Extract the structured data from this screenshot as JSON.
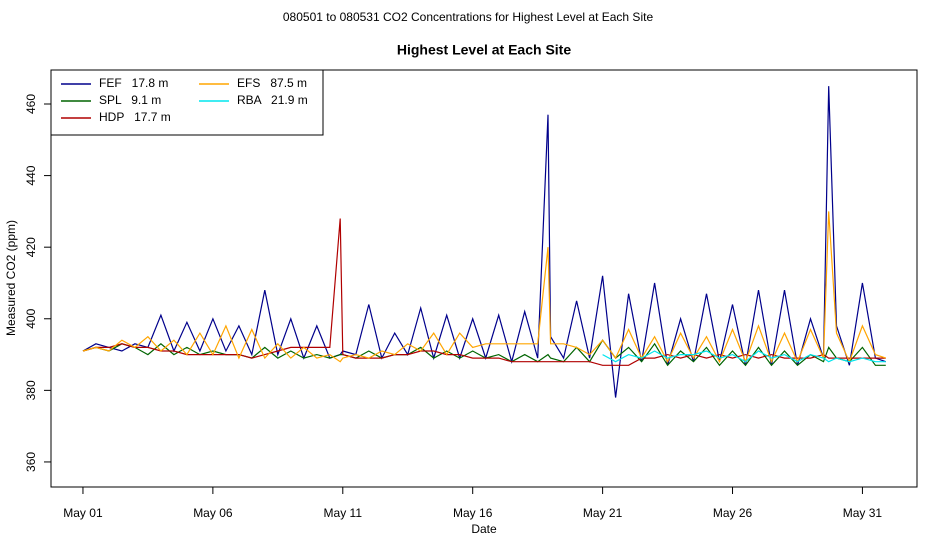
{
  "chart_data": {
    "type": "line",
    "suptitle": "080501  to  080531 CO2 Concentrations for Highest Level at Each Site",
    "title": "Highest Level at Each Site",
    "xlabel": "Date",
    "ylabel": "Measured CO2 (ppm)",
    "x": [
      0,
      0.5,
      1,
      1.5,
      2,
      2.5,
      3,
      3.5,
      4,
      4.5,
      5,
      5.5,
      6,
      6.5,
      7,
      7.5,
      8,
      8.5,
      9,
      9.5,
      9.9,
      10,
      10.5,
      11,
      11.5,
      12,
      12.5,
      13,
      13.5,
      14,
      14.5,
      15,
      15.5,
      16,
      16.5,
      17,
      17.5,
      17.9,
      18,
      18.5,
      19,
      19.5,
      20,
      20.5,
      21,
      21.5,
      22,
      22.5,
      23,
      23.5,
      24,
      24.5,
      25,
      25.5,
      26,
      26.5,
      27,
      27.5,
      28,
      28.5,
      28.7,
      29,
      29.5,
      30,
      30.5,
      30.9
    ],
    "xlim": [
      -1.23,
      32.1
    ],
    "xticks": [
      {
        "value": 0,
        "label": "May 01"
      },
      {
        "value": 5,
        "label": "May 06"
      },
      {
        "value": 10,
        "label": "May 11"
      },
      {
        "value": 15,
        "label": "May 16"
      },
      {
        "value": 20,
        "label": "May 21"
      },
      {
        "value": 25,
        "label": "May 26"
      },
      {
        "value": 30,
        "label": "May 31"
      }
    ],
    "ylim": [
      353,
      469.5
    ],
    "yticks": [
      360,
      380,
      400,
      420,
      440,
      460
    ],
    "legend": "top-left",
    "series": [
      {
        "name": "FEF   17.8 m",
        "color": "#00008b",
        "values": [
          391,
          393,
          392,
          391,
          393,
          392,
          401,
          391,
          399,
          391,
          400,
          391,
          398,
          390,
          408,
          390,
          400,
          389,
          398,
          389,
          390,
          391,
          390,
          404,
          389,
          396,
          390,
          403,
          389,
          401,
          389,
          400,
          389,
          401,
          388,
          402,
          389,
          457,
          395,
          389,
          405,
          389,
          412,
          378,
          407,
          388,
          410,
          387,
          400,
          388,
          407,
          388,
          404,
          387,
          408,
          387,
          408,
          387,
          400,
          389,
          465,
          398,
          387,
          410,
          389,
          388
        ]
      },
      {
        "name": "SPL   9.1 m",
        "color": "#006400",
        "values": [
          391,
          392,
          391,
          393,
          392,
          390,
          393,
          390,
          392,
          390,
          391,
          390,
          390,
          389,
          392,
          389,
          391,
          389,
          390,
          389,
          390,
          390,
          389,
          391,
          389,
          390,
          390,
          392,
          389,
          391,
          389,
          391,
          389,
          390,
          388,
          390,
          388,
          390,
          389,
          388,
          392,
          388,
          394,
          389,
          392,
          388,
          393,
          387,
          391,
          388,
          392,
          387,
          391,
          387,
          392,
          387,
          391,
          387,
          390,
          388,
          392,
          389,
          388,
          392,
          387,
          387
        ]
      },
      {
        "name": "HDP   17.7 m",
        "color": "#b00000",
        "values": [
          391,
          392,
          392,
          393,
          392,
          392,
          391,
          391,
          390,
          390,
          390,
          390,
          390,
          389,
          390,
          391,
          392,
          392,
          392,
          392,
          428,
          390,
          389,
          389,
          389,
          390,
          390,
          391,
          391,
          390,
          390,
          389,
          389,
          389,
          388,
          388,
          388,
          388,
          388,
          388,
          388,
          388,
          387,
          387,
          387,
          389,
          389,
          390,
          389,
          390,
          389,
          390,
          389,
          390,
          389,
          390,
          389,
          389,
          389,
          390,
          389,
          389,
          389,
          389,
          389,
          389
        ]
      },
      {
        "name": "EFS   87.5 m",
        "color": "#ffa500",
        "values": [
          391,
          392,
          391,
          394,
          392,
          395,
          391,
          394,
          390,
          396,
          390,
          398,
          389,
          397,
          389,
          393,
          389,
          392,
          389,
          390,
          388,
          389,
          390,
          389,
          391,
          390,
          393,
          391,
          396,
          390,
          396,
          392,
          393,
          393,
          393,
          393,
          393,
          420,
          393,
          393,
          392,
          390,
          394,
          389,
          397,
          389,
          395,
          388,
          396,
          389,
          395,
          388,
          397,
          388,
          398,
          388,
          396,
          388,
          397,
          389,
          430,
          396,
          388,
          398,
          390,
          389
        ]
      },
      {
        "name": "RBA   21.9 m",
        "color": "#00e5ee",
        "values": [
          null,
          null,
          null,
          null,
          null,
          null,
          null,
          null,
          null,
          null,
          null,
          null,
          null,
          null,
          null,
          null,
          null,
          null,
          null,
          null,
          null,
          null,
          null,
          null,
          null,
          null,
          null,
          null,
          null,
          null,
          null,
          null,
          null,
          null,
          null,
          null,
          null,
          null,
          null,
          null,
          null,
          null,
          390,
          388,
          390,
          389,
          391,
          389,
          390,
          390,
          391,
          389,
          390,
          388,
          391,
          389,
          390,
          388,
          390,
          389,
          388,
          389,
          388,
          389,
          388,
          388
        ]
      }
    ]
  }
}
